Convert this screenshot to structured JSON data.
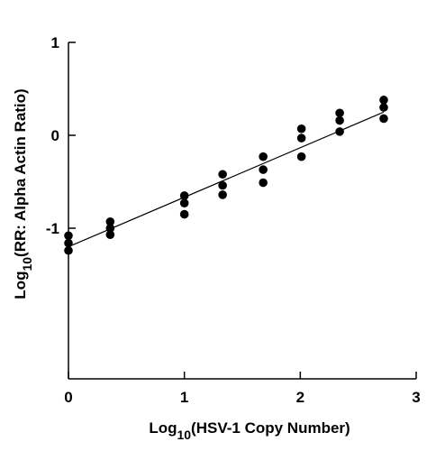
{
  "chart_data": {
    "type": "scatter",
    "title": "",
    "xlabel": {
      "prefix": "Log",
      "subscript": "10",
      "text": "(HSV-1 Copy Number)"
    },
    "ylabel": {
      "prefix": "Log",
      "subscript": "10",
      "text": "(RR: Alpha Actin Ratio)"
    },
    "xlim": [
      0,
      3
    ],
    "ylim": [
      -2.2,
      1
    ],
    "xticks": [
      0,
      1,
      2,
      3
    ],
    "xtick_labels": [
      "0",
      "1",
      "2",
      "3"
    ],
    "yticks": [
      -1,
      0,
      1
    ],
    "ytick_labels": [
      "-1",
      "0",
      "1"
    ],
    "grid": false,
    "legend": "none",
    "point_color": "#000000",
    "line_color": "#000000",
    "series": [
      {
        "points": [
          [
            0,
            -1.08
          ],
          [
            0,
            -1.16
          ],
          [
            0,
            -1.24
          ],
          [
            0.36,
            -0.93
          ],
          [
            0.36,
            -1.0
          ],
          [
            0.36,
            -1.07
          ],
          [
            1.0,
            -0.65
          ],
          [
            1.0,
            -0.73
          ],
          [
            1.0,
            -0.85
          ],
          [
            1.33,
            -0.42
          ],
          [
            1.33,
            -0.54
          ],
          [
            1.33,
            -0.64
          ],
          [
            1.68,
            -0.23
          ],
          [
            1.68,
            -0.37
          ],
          [
            1.68,
            -0.51
          ],
          [
            2.01,
            0.07
          ],
          [
            2.01,
            -0.03
          ],
          [
            2.01,
            -0.23
          ],
          [
            2.34,
            0.24
          ],
          [
            2.34,
            0.16
          ],
          [
            2.34,
            0.04
          ],
          [
            2.72,
            0.38
          ],
          [
            2.72,
            0.3
          ],
          [
            2.72,
            0.18
          ]
        ]
      }
    ],
    "fit_line": {
      "x": [
        0,
        2.72
      ],
      "y": [
        -1.2,
        0.25
      ]
    }
  }
}
